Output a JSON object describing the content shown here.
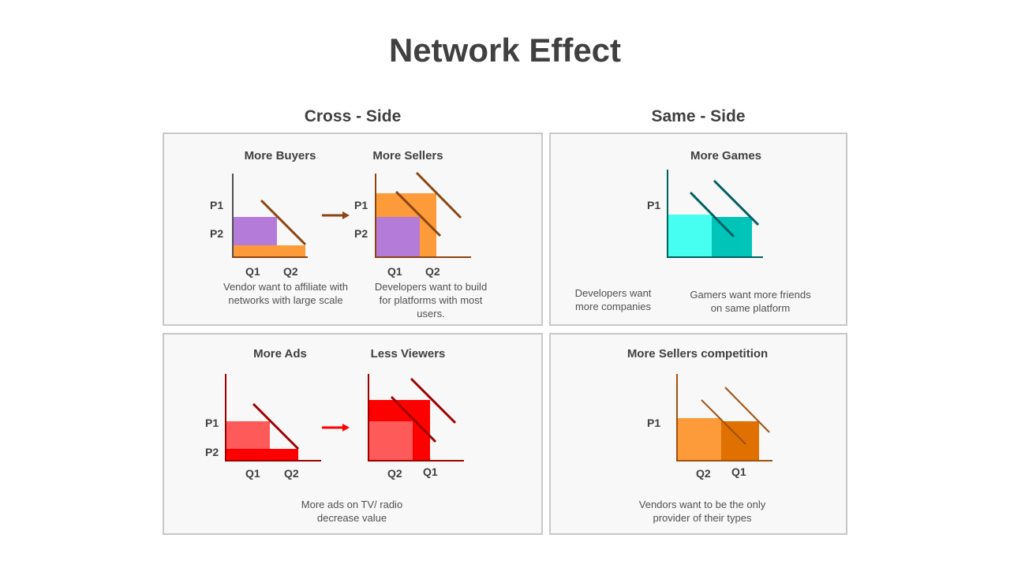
{
  "title": "Network Effect",
  "sections": {
    "cross_side": "Cross - Side",
    "same_side": "Same - Side"
  },
  "panels": {
    "cross_top": {
      "left_heading": "More Buyers",
      "right_heading": "More Sellers",
      "left_caption": "Vendor want to affiliate with networks with large scale",
      "right_caption": "Developers want to build for platforms with most users.",
      "p1": "P1",
      "p2": "P2",
      "q1": "Q1",
      "q2": "Q2"
    },
    "same_top": {
      "heading": "More Games",
      "left_caption": "Developers want more companies",
      "right_caption": "Gamers want more friends on same platform",
      "p1": "P1"
    },
    "cross_bottom": {
      "left_heading": "More Ads",
      "right_heading": "Less Viewers",
      "caption": "More ads on TV/ radio decrease value",
      "p1": "P1",
      "p2": "P2",
      "q1": "Q1",
      "q2": "Q2"
    },
    "same_bottom": {
      "heading": "More Sellers competition",
      "caption": "Vendors want to be the only provider of their types",
      "p1": "P1",
      "q1": "Q1",
      "q2": "Q2"
    }
  },
  "colors": {
    "purple": "#b57bd8",
    "orange": "#fd9b3a",
    "brown": "#8b4513",
    "cyan_light": "#47fff0",
    "cyan_dark": "#00c4b8",
    "teal_line": "#006060",
    "red_light": "#ff5a5a",
    "red": "#ff0000",
    "dark_red": "#9e0000",
    "orange_dark": "#e07000",
    "orange_line": "#a05010"
  }
}
